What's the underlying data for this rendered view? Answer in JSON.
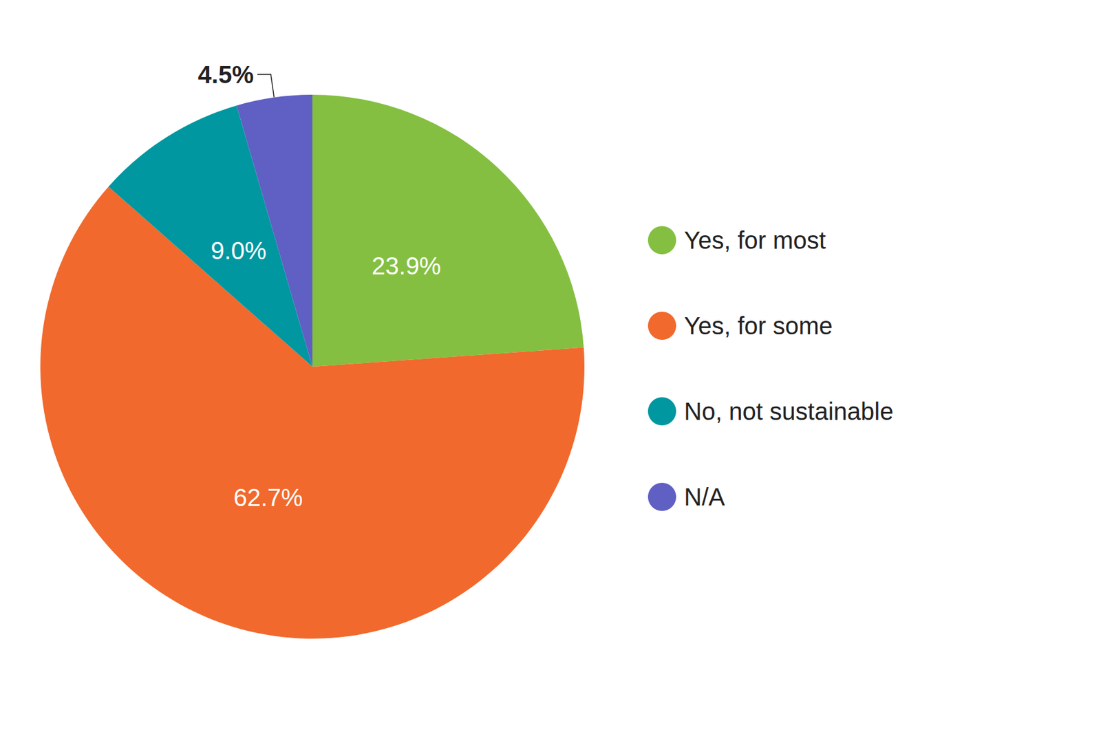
{
  "chart_data": {
    "type": "pie",
    "categories": [
      "Yes, for most",
      "Yes, for some",
      "No, not sustainable",
      "N/A"
    ],
    "values": [
      23.9,
      62.7,
      9.0,
      4.5
    ],
    "value_labels": [
      "23.9%",
      "62.7%",
      "9.0%",
      "4.5%"
    ],
    "colors": [
      "#84bf41",
      "#f1692c",
      "#0097a0",
      "#5f5fc4"
    ],
    "data_labels": true,
    "legend": "right"
  }
}
